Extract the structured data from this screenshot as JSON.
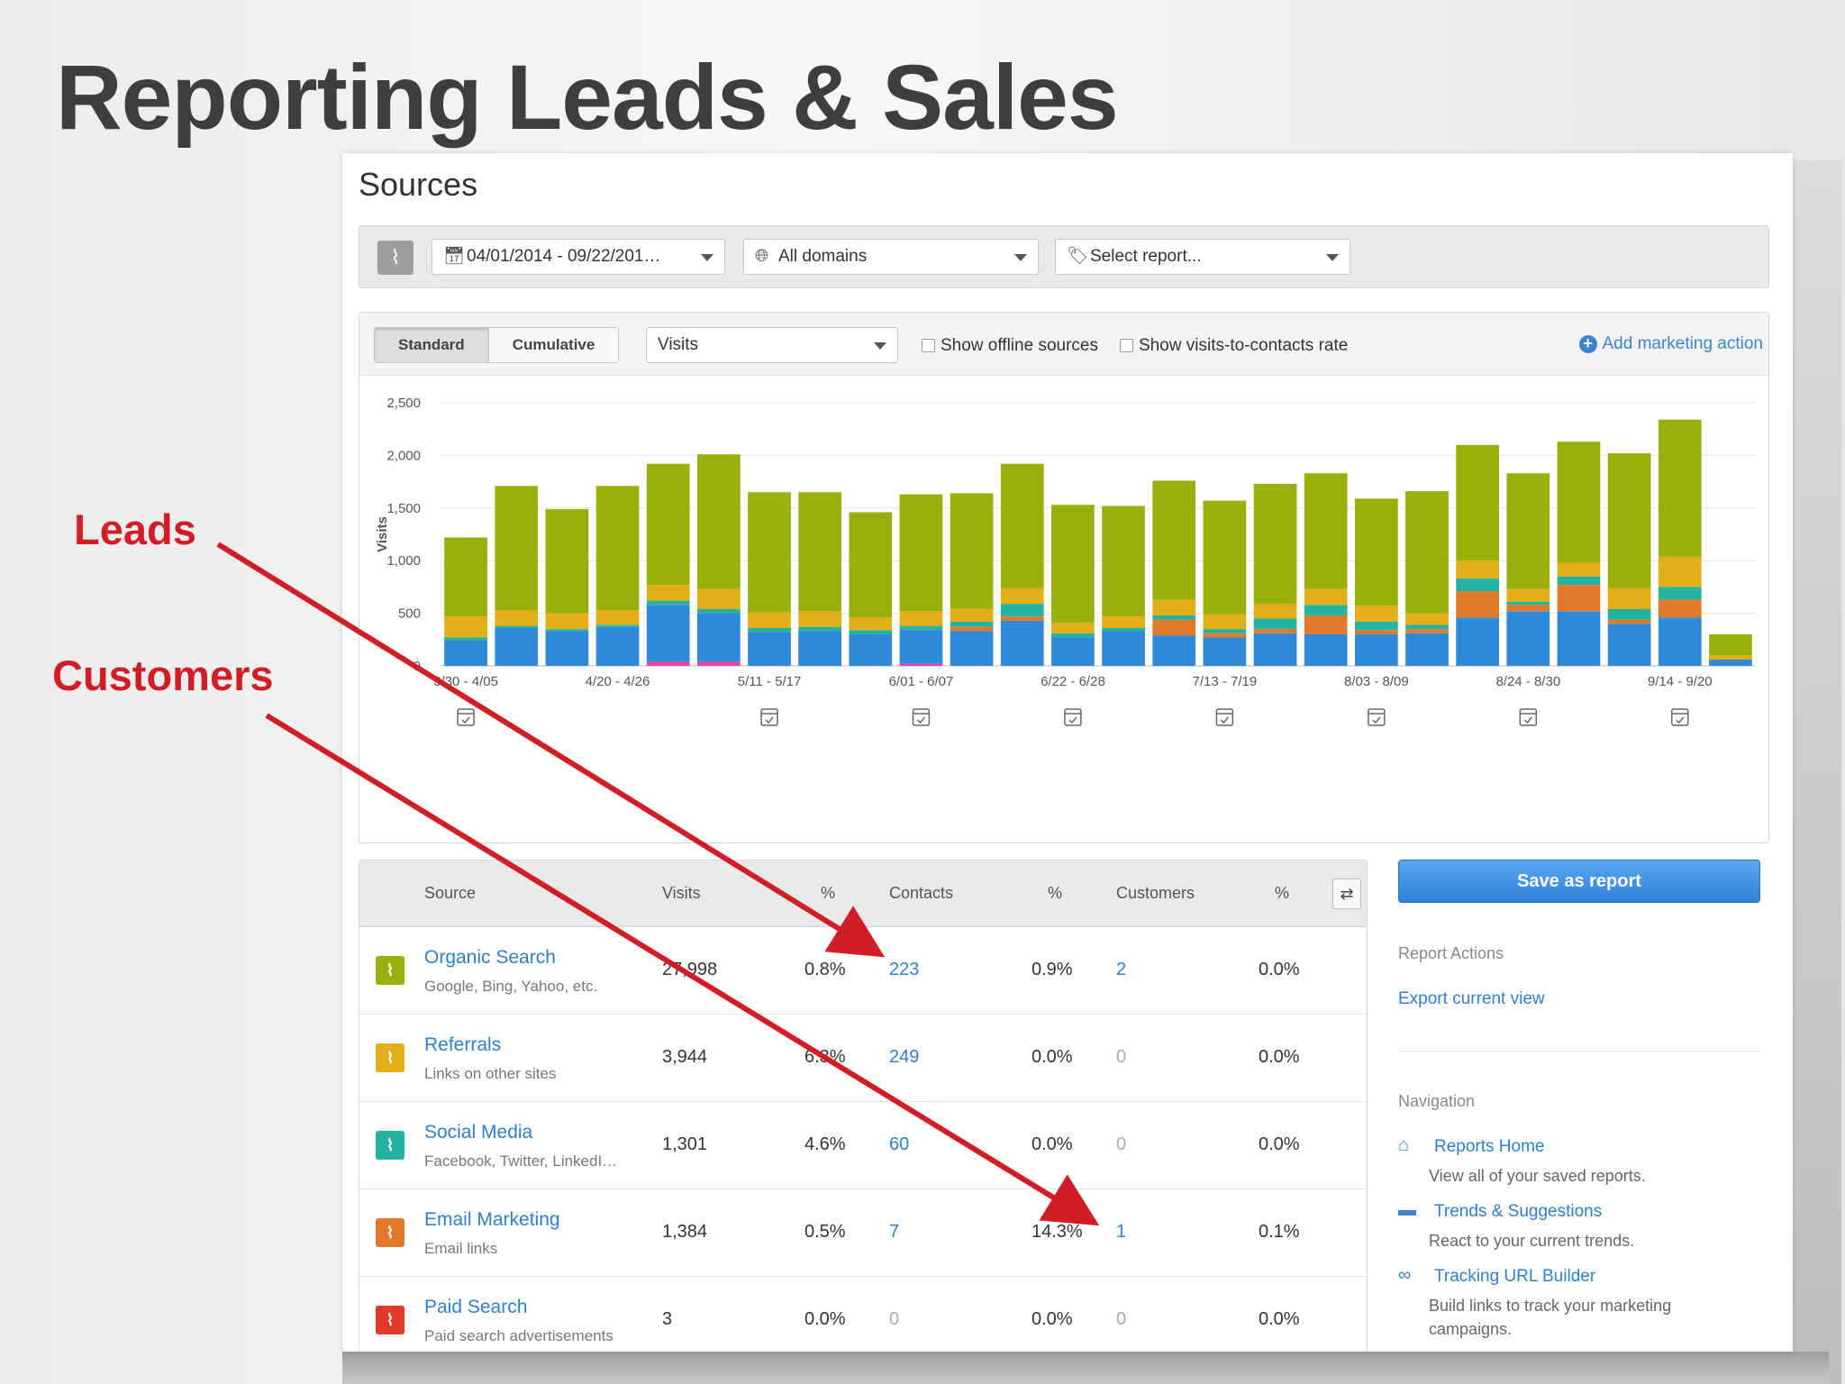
{
  "slide": {
    "title": "Reporting Leads & Sales",
    "annotations": {
      "leads": "Leads",
      "customers": "Customers"
    },
    "accent_color": "#d11e26"
  },
  "page": {
    "heading": "Sources"
  },
  "filters": {
    "chart_icon": "pulse-icon",
    "date_range": "04/01/2014 - 09/22/201…",
    "domains": "All domains",
    "report": "Select report..."
  },
  "chart_toolbar": {
    "modes": [
      "Standard",
      "Cumulative"
    ],
    "active_mode": "Standard",
    "metric": "Visits",
    "show_offline_label": "Show offline sources",
    "show_rate_label": "Show visits-to-contacts rate",
    "add_action_label": "Add marketing action"
  },
  "chart_data": {
    "type": "bar",
    "stacked": true,
    "ylabel": "Visits",
    "ylim": [
      0,
      2500
    ],
    "yticks": [
      "0",
      "500",
      "1,000",
      "1,500",
      "2,000",
      "2,500"
    ],
    "xtick_labels": [
      "3/30 - 4/05",
      "4/20 - 4/26",
      "5/11 - 5/17",
      "6/01 - 6/07",
      "6/22 - 6/28",
      "7/13 - 7/19",
      "8/03 - 8/09",
      "8/24 - 8/30",
      "9/14 - 9/20"
    ],
    "xtick_label_indices": [
      0,
      3,
      6,
      9,
      12,
      15,
      18,
      21,
      24
    ],
    "grid": true,
    "series": [
      {
        "color": "#e046a6",
        "values": [
          0,
          0,
          0,
          0,
          40,
          40,
          0,
          0,
          0,
          20,
          0,
          0,
          0,
          0,
          0,
          0,
          0,
          0,
          0,
          0,
          0,
          0,
          0,
          0,
          0,
          0
        ]
      },
      {
        "color": "#2e8ad8",
        "values": [
          240,
          360,
          330,
          370,
          540,
          460,
          320,
          330,
          300,
          320,
          330,
          430,
          270,
          330,
          290,
          270,
          310,
          300,
          300,
          310,
          460,
          520,
          520,
          400,
          460,
          60
        ]
      },
      {
        "color": "#e2792a",
        "values": [
          0,
          0,
          0,
          0,
          0,
          0,
          0,
          0,
          0,
          0,
          40,
          40,
          0,
          0,
          150,
          40,
          40,
          180,
          40,
          40,
          250,
          60,
          250,
          40,
          170,
          0
        ]
      },
      {
        "color": "#24b3a0",
        "values": [
          30,
          20,
          20,
          20,
          40,
          40,
          40,
          40,
          40,
          40,
          50,
          120,
          40,
          30,
          40,
          40,
          100,
          100,
          80,
          40,
          120,
          30,
          80,
          100,
          120,
          0
        ]
      },
      {
        "color": "#e3ae17",
        "values": [
          200,
          150,
          150,
          140,
          150,
          190,
          150,
          150,
          120,
          140,
          120,
          150,
          100,
          110,
          150,
          140,
          140,
          150,
          150,
          110,
          170,
          120,
          130,
          200,
          290,
          40
        ]
      },
      {
        "color": "#9aaf0c",
        "values": [
          750,
          1180,
          990,
          1180,
          1150,
          1280,
          1140,
          1130,
          1000,
          1110,
          1100,
          1180,
          1120,
          1050,
          1130,
          1080,
          1140,
          1100,
          1020,
          1160,
          1100,
          1100,
          1150,
          1280,
          1300,
          200
        ]
      }
    ],
    "calendar_marker_indices": [
      0,
      6,
      9,
      12,
      15,
      18,
      21,
      24
    ]
  },
  "table": {
    "headers": {
      "source": "Source",
      "visits": "Visits",
      "visits_pct": "%",
      "contacts": "Contacts",
      "contacts_pct": "%",
      "customers": "Customers",
      "customers_pct": "%"
    },
    "rows": [
      {
        "name": "Organic Search",
        "sub": "Google, Bing, Yahoo, etc.",
        "color": "#9aaf0c",
        "visits": "27,998",
        "visits_pct": "0.8%",
        "contacts": "223",
        "contacts_pct": "0.9%",
        "customers": "2",
        "customers_pct": "0.0%"
      },
      {
        "name": "Referrals",
        "sub": "Links on other sites",
        "color": "#e3ae17",
        "visits": "3,944",
        "visits_pct": "6.3%",
        "contacts": "249",
        "contacts_pct": "0.0%",
        "customers": "0",
        "customers_pct": "0.0%"
      },
      {
        "name": "Social Media",
        "sub": "Facebook, Twitter, LinkedI…",
        "color": "#24b3a0",
        "visits": "1,301",
        "visits_pct": "4.6%",
        "contacts": "60",
        "contacts_pct": "0.0%",
        "customers": "0",
        "customers_pct": "0.0%"
      },
      {
        "name": "Email Marketing",
        "sub": "Email links",
        "color": "#e2792a",
        "visits": "1,384",
        "visits_pct": "0.5%",
        "contacts": "7",
        "contacts_pct": "14.3%",
        "customers": "1",
        "customers_pct": "0.1%"
      },
      {
        "name": "Paid Search",
        "sub": "Paid search advertisements",
        "color": "#e23a2a",
        "visits": "3",
        "visits_pct": "0.0%",
        "contacts": "0",
        "contacts_pct": "0.0%",
        "customers": "0",
        "customers_pct": "0.0%"
      }
    ]
  },
  "side": {
    "save_label": "Save as report",
    "actions_heading": "Report Actions",
    "export_label": "Export current view",
    "nav_heading": "Navigation",
    "nav": [
      {
        "icon": "home-icon",
        "label": "Reports Home",
        "desc": "View all of your saved reports."
      },
      {
        "icon": "inbox-icon",
        "label": "Trends & Suggestions",
        "desc": "React to your current trends."
      },
      {
        "icon": "link-icon",
        "label": "Tracking URL Builder",
        "desc": "Build links to track your marketing campaigns."
      }
    ]
  }
}
